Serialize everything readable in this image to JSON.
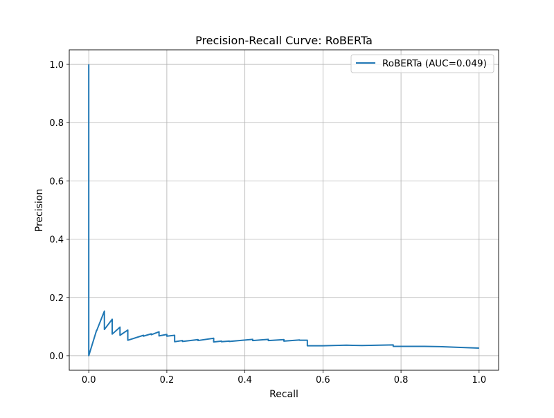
{
  "chart_data": {
    "type": "line",
    "title": "Precision-Recall Curve: RoBERTa",
    "xlabel": "Recall",
    "ylabel": "Precision",
    "xlim": [
      -0.05,
      1.05
    ],
    "ylim": [
      -0.05,
      1.05
    ],
    "xticks": [
      0.0,
      0.2,
      0.4,
      0.6,
      0.8,
      1.0
    ],
    "xtick_labels": [
      "0.0",
      "0.2",
      "0.4",
      "0.6",
      "0.8",
      "1.0"
    ],
    "yticks": [
      0.0,
      0.2,
      0.4,
      0.6,
      0.8,
      1.0
    ],
    "ytick_labels": [
      "0.0",
      "0.2",
      "0.4",
      "0.6",
      "0.8",
      "1.0"
    ],
    "grid": true,
    "legend_position": "top-right",
    "series": [
      {
        "name": "RoBERTa (AUC=0.049)",
        "color": "#1f77b4",
        "x": [
          0.0,
          0.0,
          0.0,
          0.02,
          0.02,
          0.04,
          0.04,
          0.06,
          0.06,
          0.08,
          0.08,
          0.1,
          0.1,
          0.14,
          0.14,
          0.16,
          0.16,
          0.18,
          0.18,
          0.2,
          0.2,
          0.22,
          0.22,
          0.24,
          0.24,
          0.28,
          0.28,
          0.32,
          0.32,
          0.34,
          0.34,
          0.36,
          0.36,
          0.42,
          0.42,
          0.46,
          0.46,
          0.5,
          0.5,
          0.54,
          0.54,
          0.56,
          0.56,
          0.6,
          0.66,
          0.7,
          0.78,
          0.78,
          0.86,
          0.9,
          0.94,
          1.0
        ],
        "y": [
          1.0,
          0.0,
          0.0,
          0.087,
          0.085,
          0.153,
          0.09,
          0.125,
          0.074,
          0.098,
          0.07,
          0.088,
          0.053,
          0.07,
          0.067,
          0.075,
          0.072,
          0.082,
          0.068,
          0.073,
          0.067,
          0.07,
          0.048,
          0.052,
          0.049,
          0.055,
          0.052,
          0.06,
          0.047,
          0.05,
          0.048,
          0.05,
          0.049,
          0.056,
          0.052,
          0.056,
          0.052,
          0.055,
          0.05,
          0.054,
          0.053,
          0.053,
          0.034,
          0.034,
          0.036,
          0.035,
          0.037,
          0.032,
          0.032,
          0.031,
          0.029,
          0.026
        ]
      }
    ]
  }
}
